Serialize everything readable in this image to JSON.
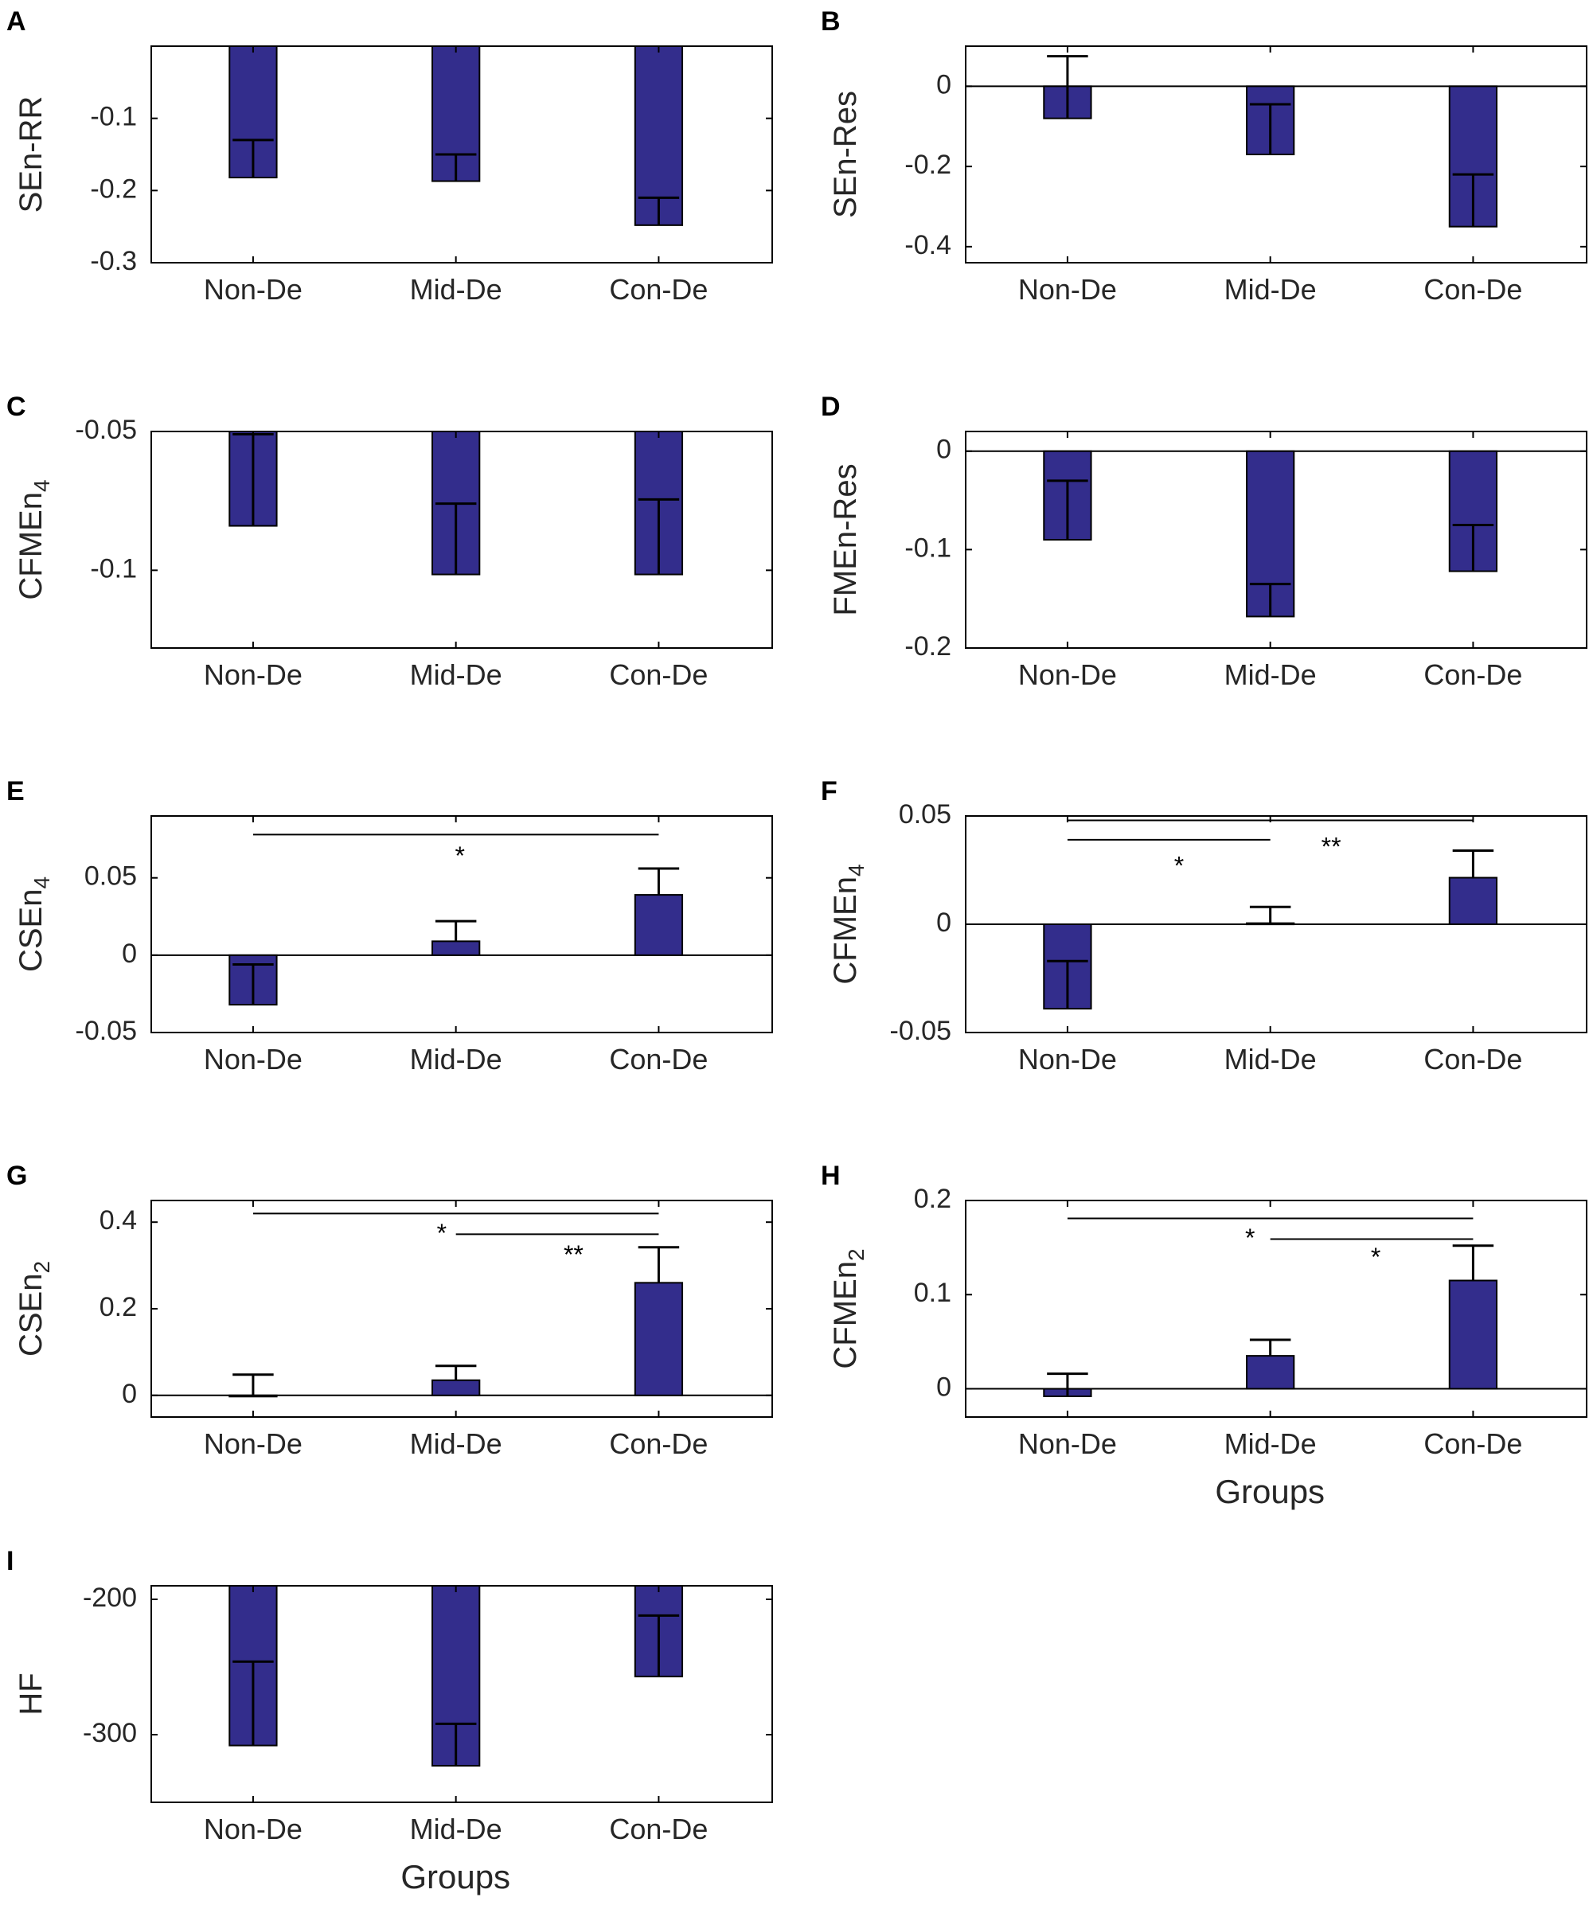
{
  "figure": {
    "bar_color": "#332D8C",
    "edge_color": "#000000",
    "panels": [
      {
        "id": "A",
        "label": "A",
        "ylabel": "SEn-RR",
        "ylabel_sub": "",
        "ylim": [
          -0.3,
          0.0
        ],
        "yticks": [
          -0.1,
          -0.2,
          -0.3
        ],
        "yticklabels": [
          "-0.1",
          "-0.2",
          "-0.3"
        ],
        "zero_line": false,
        "categories": [
          "Non-De",
          "Mid-De",
          "Con-De"
        ],
        "values": [
          -0.182,
          -0.187,
          -0.248
        ],
        "error_ends": [
          -0.13,
          -0.15,
          -0.21
        ],
        "xlabel": "",
        "sig": []
      },
      {
        "id": "B",
        "label": "B",
        "ylabel": "SEn-Res",
        "ylabel_sub": "",
        "ylim": [
          -0.44,
          0.1
        ],
        "yticks": [
          0,
          -0.2,
          -0.4
        ],
        "yticklabels": [
          "0",
          "-0.2",
          "-0.4"
        ],
        "zero_line": true,
        "categories": [
          "Non-De",
          "Mid-De",
          "Con-De"
        ],
        "values": [
          -0.08,
          -0.17,
          -0.35
        ],
        "error_ends": [
          0.075,
          -0.045,
          -0.22
        ],
        "xlabel": "",
        "sig": []
      },
      {
        "id": "C",
        "label": "C",
        "ylabel": "CFMEn",
        "ylabel_sub": "4",
        "ylim": [
          -0.128,
          -0.05
        ],
        "yticks": [
          -0.05,
          -0.1
        ],
        "yticklabels": [
          "-0.05",
          "-0.1"
        ],
        "zero_line": false,
        "categories": [
          "Non-De",
          "Mid-De",
          "Con-De"
        ],
        "values": [
          -0.084,
          -0.1015,
          -0.1015
        ],
        "error_ends": [
          -0.051,
          -0.076,
          -0.0745
        ],
        "xlabel": "",
        "sig": []
      },
      {
        "id": "D",
        "label": "D",
        "ylabel": "FMEn-Res",
        "ylabel_sub": "",
        "ylim": [
          -0.2,
          0.02
        ],
        "yticks": [
          0,
          -0.1,
          -0.2
        ],
        "yticklabels": [
          "0",
          "-0.1",
          "-0.2"
        ],
        "zero_line": true,
        "categories": [
          "Non-De",
          "Mid-De",
          "Con-De"
        ],
        "values": [
          -0.09,
          -0.168,
          -0.122
        ],
        "error_ends": [
          -0.03,
          -0.135,
          -0.075
        ],
        "xlabel": "",
        "sig": []
      },
      {
        "id": "E",
        "label": "E",
        "ylabel": "CSEn",
        "ylabel_sub": "4",
        "ylim": [
          -0.05,
          0.09
        ],
        "yticks": [
          0.05,
          0,
          -0.05
        ],
        "yticklabels": [
          "0.05",
          "0",
          "-0.05"
        ],
        "zero_line": true,
        "categories": [
          "Non-De",
          "Mid-De",
          "Con-De"
        ],
        "values": [
          -0.032,
          0.009,
          0.039
        ],
        "error_ends": [
          -0.006,
          0.022,
          0.056
        ],
        "xlabel": "",
        "sig": [
          {
            "from": 0,
            "to": 2,
            "y": 0.078,
            "label": "*",
            "label_x": 1.02,
            "label_y": 0.063
          }
        ]
      },
      {
        "id": "F",
        "label": "F",
        "ylabel": "CFMEn",
        "ylabel_sub": "4",
        "ylim": [
          -0.05,
          0.05
        ],
        "yticks": [
          0.05,
          0,
          -0.05
        ],
        "yticklabels": [
          "0.05",
          "0",
          "-0.05"
        ],
        "zero_line": true,
        "categories": [
          "Non-De",
          "Mid-De",
          "Con-De"
        ],
        "values": [
          -0.039,
          0.0005,
          0.0215
        ],
        "error_ends": [
          -0.017,
          0.008,
          0.034
        ],
        "xlabel": "",
        "sig": [
          {
            "from": 0,
            "to": 2,
            "y": 0.048,
            "label": "**",
            "label_x": 1.3,
            "label_y": 0.035
          },
          {
            "from": 0,
            "to": 1,
            "y": 0.039,
            "label": "*",
            "label_x": 0.55,
            "label_y": 0.026
          }
        ]
      },
      {
        "id": "G",
        "label": "G",
        "ylabel": "CSEn",
        "ylabel_sub": "2",
        "ylim": [
          -0.05,
          0.45
        ],
        "yticks": [
          0.4,
          0.2,
          0
        ],
        "yticklabels": [
          "0.4",
          "0.2",
          "0"
        ],
        "zero_line": true,
        "categories": [
          "Non-De",
          "Mid-De",
          "Con-De"
        ],
        "values": [
          -0.002,
          0.035,
          0.26
        ],
        "error_ends": [
          0.048,
          0.068,
          0.342
        ],
        "xlabel": "",
        "sig": [
          {
            "from": 0,
            "to": 2,
            "y": 0.42,
            "label": "*",
            "label_x": 0.93,
            "label_y": 0.37
          },
          {
            "from": 1,
            "to": 2,
            "y": 0.372,
            "label": "**",
            "label_x": 1.58,
            "label_y": 0.32
          }
        ]
      },
      {
        "id": "H",
        "label": "H",
        "ylabel": "CFMEn",
        "ylabel_sub": "2",
        "ylim": [
          -0.03,
          0.2
        ],
        "yticks": [
          0.2,
          0.1,
          0
        ],
        "yticklabels": [
          "0.2",
          "0.1",
          "0"
        ],
        "zero_line": true,
        "categories": [
          "Non-De",
          "Mid-De",
          "Con-De"
        ],
        "values": [
          -0.008,
          0.035,
          0.115
        ],
        "error_ends": [
          0.016,
          0.052,
          0.152
        ],
        "xlabel": "Groups",
        "sig": [
          {
            "from": 0,
            "to": 2,
            "y": 0.181,
            "label": "*",
            "label_x": 0.9,
            "label_y": 0.158
          },
          {
            "from": 1,
            "to": 2,
            "y": 0.159,
            "label": "*",
            "label_x": 1.52,
            "label_y": 0.138
          }
        ]
      },
      {
        "id": "I",
        "label": "I",
        "ylabel": "HF",
        "ylabel_sub": "",
        "ylim": [
          -350,
          -190
        ],
        "yticks": [
          -200,
          -300
        ],
        "yticklabels": [
          "-200",
          "-300"
        ],
        "zero_line": false,
        "categories": [
          "Non-De",
          "Mid-De",
          "Con-De"
        ],
        "values": [
          -308,
          -323,
          -257
        ],
        "error_ends": [
          -246,
          -292,
          -212
        ],
        "xlabel": "Groups",
        "sig": []
      }
    ]
  }
}
